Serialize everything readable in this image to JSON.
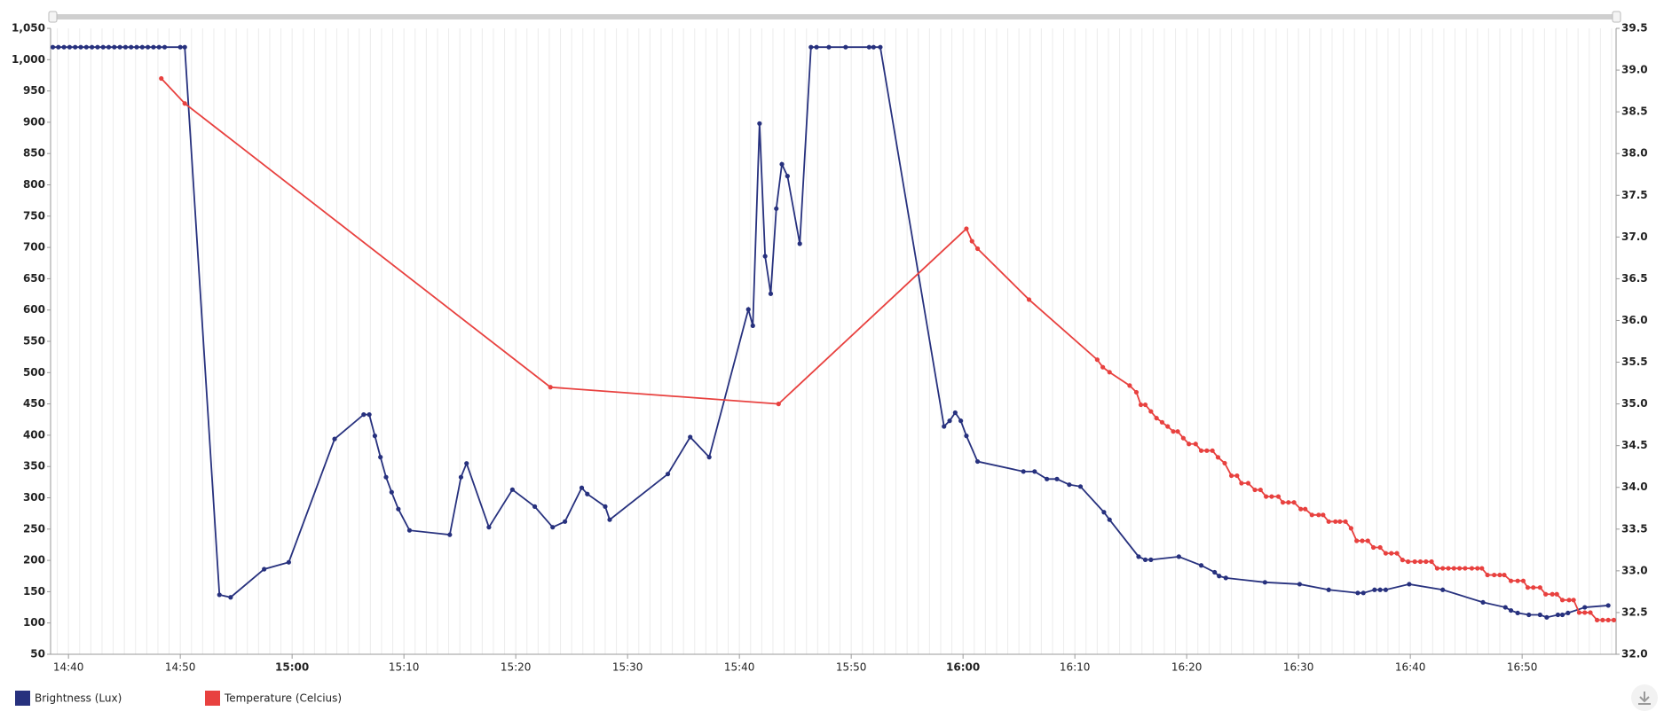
{
  "chart_data": {
    "type": "line",
    "xlim": [
      878.4,
      1018.4
    ],
    "xticks": [
      {
        "value": 880,
        "label": "14:40"
      },
      {
        "value": 890,
        "label": "14:50"
      },
      {
        "value": 900,
        "label": "15:00"
      },
      {
        "value": 910,
        "label": "15:10"
      },
      {
        "value": 920,
        "label": "15:20"
      },
      {
        "value": 930,
        "label": "15:30"
      },
      {
        "value": 940,
        "label": "15:40"
      },
      {
        "value": 950,
        "label": "15:50"
      },
      {
        "value": 960,
        "label": "16:00"
      },
      {
        "value": 970,
        "label": "16:10"
      },
      {
        "value": 980,
        "label": "16:20"
      },
      {
        "value": 990,
        "label": "16:30"
      },
      {
        "value": 1000,
        "label": "16:40"
      },
      {
        "value": 1010,
        "label": "16:50"
      }
    ],
    "ylim": [
      50,
      1050
    ],
    "yticks": [
      50,
      100,
      150,
      200,
      250,
      300,
      350,
      400,
      450,
      500,
      550,
      600,
      650,
      700,
      750,
      800,
      850,
      900,
      950,
      {
        "value": 1000,
        "label": "1,000"
      },
      {
        "value": 1050,
        "label": "1,050"
      }
    ],
    "y2lim": [
      32,
      39.5
    ],
    "y2ticks": [
      {
        "value": 32,
        "label": "32.0"
      },
      32.5,
      {
        "value": 33,
        "label": "33.0"
      },
      33.5,
      {
        "value": 34,
        "label": "34.0"
      },
      34.5,
      {
        "value": 35,
        "label": "35.0"
      },
      35.5,
      {
        "value": 36,
        "label": "36.0"
      },
      36.5,
      {
        "value": 37,
        "label": "37.0"
      },
      37.5,
      {
        "value": 38,
        "label": "38.0"
      },
      38.5,
      {
        "value": 39,
        "label": "39.0"
      },
      39.5
    ],
    "series": [
      {
        "name": "Brightness (Lux)",
        "color": "#27317e",
        "x": [
          878.6,
          879.1,
          879.6,
          880.1,
          880.6,
          881.1,
          881.6,
          882.1,
          882.6,
          883.1,
          883.6,
          884.1,
          884.6,
          885.1,
          885.6,
          886.1,
          886.6,
          887.1,
          887.6,
          888.1,
          888.6,
          890.0,
          890.4,
          893.5,
          894.5,
          897.5,
          899.7,
          903.8,
          906.4,
          906.9,
          907.4,
          907.9,
          908.4,
          908.9,
          909.5,
          910.5,
          914.1,
          915.1,
          915.6,
          917.6,
          919.7,
          921.7,
          923.3,
          924.4,
          925.9,
          926.4,
          928.0,
          928.4,
          933.6,
          935.6,
          937.3,
          940.8,
          941.2,
          941.8,
          942.3,
          942.8,
          943.3,
          943.8,
          944.3,
          945.4,
          946.4,
          946.9,
          948.0,
          949.5,
          951.6,
          952.0,
          952.6,
          958.3,
          958.8,
          959.3,
          959.8,
          960.3,
          961.3,
          965.4,
          966.4,
          967.5,
          968.4,
          969.5,
          970.5,
          972.6,
          973.1,
          975.7,
          976.3,
          976.8,
          979.3,
          981.3,
          982.5,
          982.9,
          983.5,
          987.0,
          990.1,
          992.7,
          995.3,
          995.8,
          996.8,
          997.3,
          997.8,
          999.9,
          1002.9,
          1006.5,
          1008.5,
          1009.0,
          1009.6,
          1010.6,
          1011.6,
          1012.2,
          1013.2,
          1013.6,
          1014.1,
          1015.6,
          1017.7
        ],
        "values": [
          1020,
          1020,
          1020,
          1020,
          1020,
          1020,
          1020,
          1020,
          1020,
          1020,
          1020,
          1020,
          1020,
          1020,
          1020,
          1020,
          1020,
          1020,
          1020,
          1020,
          1020,
          1020,
          1020,
          145,
          141,
          186,
          197,
          394,
          433,
          433,
          399,
          365,
          333,
          309,
          282,
          248,
          241,
          333,
          355,
          253,
          313,
          286,
          253,
          262,
          316,
          306,
          286,
          265,
          338,
          397,
          365,
          601,
          575,
          898,
          686,
          626,
          762,
          833,
          814,
          706,
          1020,
          1020,
          1020,
          1020,
          1020,
          1020,
          1020,
          414,
          423,
          436,
          423,
          399,
          358,
          342,
          342,
          330,
          330,
          321,
          318,
          277,
          265,
          206,
          201,
          201,
          206,
          192,
          181,
          175,
          172,
          165,
          162,
          153,
          148,
          148,
          153,
          153,
          153,
          162,
          153,
          133,
          125,
          120,
          116,
          113,
          113,
          109,
          113,
          113,
          116,
          125,
          128
        ]
      },
      {
        "name": "Temperature (Celcius)",
        "color": "#e8413f",
        "axis": "y2",
        "x": [
          888.3,
          890.4,
          923.1,
          943.5,
          960.3,
          960.8,
          961.3,
          965.9,
          972.0,
          972.5,
          973.1,
          974.9,
          975.5,
          975.9,
          976.3,
          976.8,
          977.3,
          977.8,
          978.3,
          978.8,
          979.2,
          979.7,
          980.2,
          980.8,
          981.3,
          981.8,
          982.3,
          982.8,
          983.4,
          984.0,
          984.5,
          984.9,
          985.5,
          986.1,
          986.6,
          987.1,
          987.6,
          988.2,
          988.6,
          989.1,
          989.6,
          990.2,
          990.6,
          991.2,
          991.8,
          992.2,
          992.7,
          993.3,
          993.7,
          994.2,
          994.7,
          995.2,
          995.7,
          996.2,
          996.7,
          997.3,
          997.8,
          998.3,
          998.8,
          999.3,
          999.8,
          1000.4,
          1000.9,
          1001.4,
          1001.9,
          1002.4,
          1002.9,
          1003.4,
          1003.9,
          1004.4,
          1004.9,
          1005.5,
          1006.0,
          1006.4,
          1006.9,
          1007.5,
          1008.0,
          1008.4,
          1009.0,
          1009.6,
          1010.1,
          1010.5,
          1011.0,
          1011.6,
          1012.1,
          1012.7,
          1013.1,
          1013.6,
          1014.2,
          1014.6,
          1015.1,
          1015.6,
          1016.1,
          1016.7,
          1017.2,
          1017.7,
          1018.2
        ],
        "values": [
          38.9,
          38.6,
          35.2,
          35.0,
          37.1,
          36.95,
          36.86,
          36.25,
          35.53,
          35.44,
          35.38,
          35.22,
          35.14,
          34.99,
          34.99,
          34.91,
          34.83,
          34.78,
          34.73,
          34.67,
          34.67,
          34.59,
          34.52,
          34.52,
          34.44,
          34.44,
          34.44,
          34.36,
          34.29,
          34.14,
          34.14,
          34.05,
          34.05,
          33.97,
          33.97,
          33.89,
          33.89,
          33.89,
          33.82,
          33.82,
          33.82,
          33.74,
          33.74,
          33.67,
          33.67,
          33.67,
          33.59,
          33.59,
          33.59,
          33.59,
          33.51,
          33.36,
          33.36,
          33.36,
          33.28,
          33.28,
          33.21,
          33.21,
          33.21,
          33.13,
          33.11,
          33.11,
          33.11,
          33.11,
          33.11,
          33.03,
          33.03,
          33.03,
          33.03,
          33.03,
          33.03,
          33.03,
          33.03,
          33.03,
          32.95,
          32.95,
          32.95,
          32.95,
          32.88,
          32.88,
          32.88,
          32.8,
          32.8,
          32.8,
          32.72,
          32.72,
          32.72,
          32.65,
          32.65,
          32.65,
          32.5,
          32.5,
          32.5,
          32.41,
          32.41,
          32.41,
          32.41
        ]
      }
    ]
  }
}
